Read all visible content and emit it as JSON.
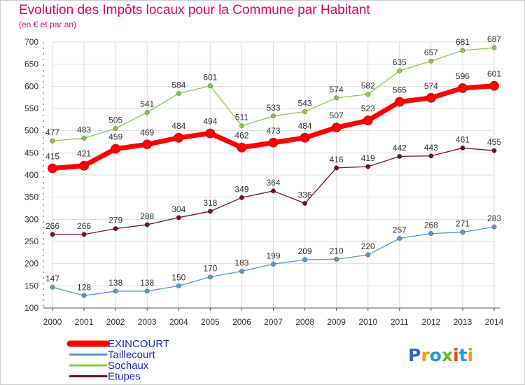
{
  "title": "Evolution des Impôts locaux pour la Commune par Habitant",
  "subtitle": "(en € et par an)",
  "logo": {
    "text": "Proxiti"
  },
  "colors": {
    "title": "#e0006e",
    "background": "#ffffff",
    "grid": "#dddddd"
  },
  "chart_data": {
    "type": "line",
    "title": "Evolution des Impôts locaux pour la Commune par Habitant",
    "subtitle": "(en € et par an)",
    "xlabel": "",
    "ylabel": "",
    "x": [
      "2000",
      "2001",
      "2002",
      "2003",
      "2004",
      "2005",
      "2006",
      "2007",
      "2008",
      "2009",
      "2010",
      "2011",
      "2012",
      "2013",
      "2014"
    ],
    "ylim": [
      100,
      700
    ],
    "yticks": [
      100,
      150,
      200,
      250,
      300,
      350,
      400,
      450,
      500,
      550,
      600,
      650,
      700
    ],
    "grid": true,
    "legend_position": "bottom-left",
    "series": [
      {
        "name": "EXINCOURT",
        "color": "#ff0000",
        "highlight": true,
        "values": [
          415,
          421,
          459,
          469,
          484,
          494,
          462,
          473,
          484,
          507,
          523,
          565,
          574,
          596,
          601
        ]
      },
      {
        "name": "Taillecourt",
        "color": "#5599dd",
        "highlight": false,
        "values": [
          147,
          128,
          138,
          138,
          150,
          170,
          183,
          199,
          209,
          210,
          220,
          257,
          268,
          271,
          283
        ]
      },
      {
        "name": "Sochaux",
        "color": "#88cc44",
        "highlight": false,
        "values": [
          477,
          483,
          505,
          541,
          584,
          601,
          511,
          533,
          543,
          574,
          582,
          635,
          657,
          681,
          687
        ]
      },
      {
        "name": "Etupes",
        "color": "#771122",
        "highlight": false,
        "values": [
          266,
          266,
          279,
          288,
          304,
          318,
          349,
          364,
          336,
          416,
          419,
          442,
          443,
          461,
          455
        ]
      }
    ]
  }
}
